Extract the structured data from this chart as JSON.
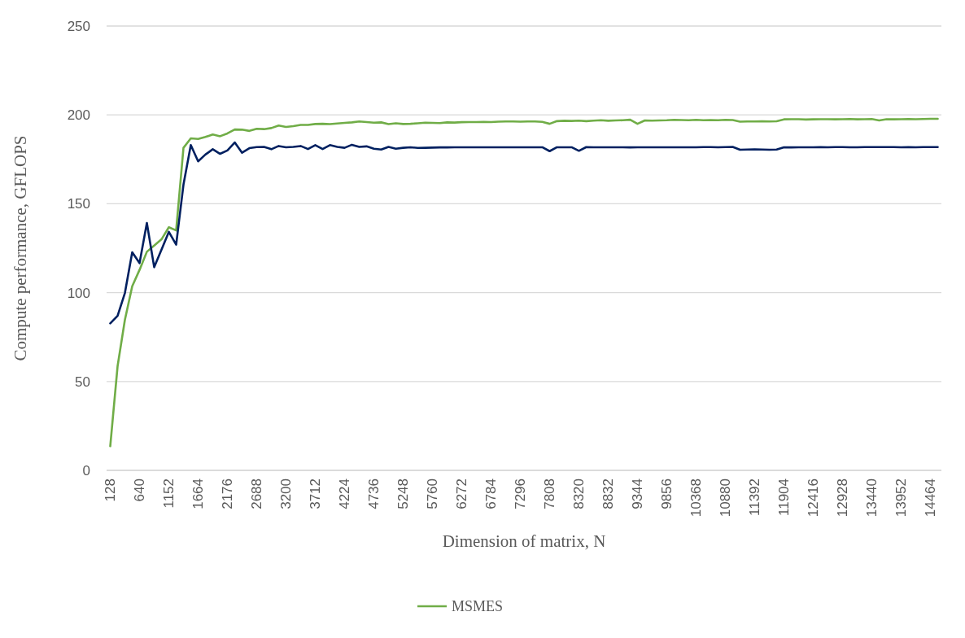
{
  "chart_data": {
    "type": "line",
    "xlabel": "Dimension of matrix, N",
    "ylabel": "Compute performance,  GFLOPS",
    "categories": [
      "128",
      null,
      null,
      null,
      "640",
      null,
      null,
      null,
      "1152",
      null,
      null,
      null,
      "1664",
      null,
      null,
      null,
      "2176",
      null,
      null,
      null,
      "2688",
      null,
      null,
      null,
      "3200",
      null,
      null,
      null,
      "3712",
      null,
      null,
      null,
      "4224",
      null,
      null,
      null,
      "4736",
      null,
      null,
      null,
      "5248",
      null,
      null,
      null,
      "5760",
      null,
      null,
      null,
      "6272",
      null,
      null,
      null,
      "6784",
      null,
      null,
      null,
      "7296",
      null,
      null,
      null,
      "7808",
      null,
      null,
      null,
      "8320",
      null,
      null,
      null,
      "8832",
      null,
      null,
      null,
      "9344",
      null,
      null,
      null,
      "9856",
      null,
      null,
      null,
      "10368",
      null,
      null,
      null,
      "10880",
      null,
      null,
      null,
      "11392",
      null,
      null,
      null,
      "11904",
      null,
      null,
      null,
      "12416",
      null,
      null,
      null,
      "12928",
      null,
      null,
      null,
      "13440",
      null,
      null,
      null,
      "13952",
      null,
      null,
      null,
      "14464",
      null
    ],
    "series": [
      {
        "name": "MSMES",
        "color": "#70ad47",
        "values": [
          13.6,
          58.6,
          84.7,
          103.6,
          112.8,
          123,
          126.5,
          130,
          136.8,
          135,
          181.5,
          186.8,
          186.5,
          187.6,
          189,
          188,
          189.6,
          191.8,
          191.7,
          191,
          192.2,
          192,
          192.6,
          194,
          193.2,
          193.7,
          194.4,
          194.4,
          194.9,
          195,
          194.8,
          195.2,
          195.5,
          195.8,
          196.3,
          196,
          195.6,
          195.8,
          194.8,
          195.3,
          194.9,
          195,
          195.3,
          195.6,
          195.5,
          195.4,
          195.8,
          195.7,
          195.9,
          196,
          196,
          196.1,
          196,
          196.2,
          196.3,
          196.3,
          196.2,
          196.3,
          196.3,
          196.1,
          195,
          196.5,
          196.7,
          196.6,
          196.8,
          196.5,
          196.8,
          197,
          196.7,
          196.9,
          197,
          197.3,
          195,
          196.9,
          196.8,
          196.9,
          197,
          197.2,
          197.1,
          197,
          197.2,
          197,
          197.1,
          197,
          197.2,
          197.1,
          196.2,
          196.3,
          196.3,
          196.4,
          196.3,
          196.4,
          197.5,
          197.6,
          197.6,
          197.4,
          197.5,
          197.6,
          197.6,
          197.5,
          197.6,
          197.7,
          197.5,
          197.6,
          197.7,
          196.9,
          197.6,
          197.5,
          197.6,
          197.7,
          197.6,
          197.7,
          197.8,
          197.8
        ]
      },
      {
        "color": "#002060",
        "values": [
          82.7,
          86.9,
          99.8,
          122.7,
          116.6,
          139.2,
          114.3,
          124.2,
          134.2,
          127,
          160.8,
          183,
          173.9,
          177.7,
          180.7,
          178.1,
          180,
          184.5,
          178.7,
          181.3,
          181.9,
          182,
          180.7,
          182.5,
          181.8,
          182,
          182.5,
          180.8,
          183,
          180.8,
          183,
          182,
          181.5,
          183.2,
          182,
          182.3,
          181,
          180.5,
          182,
          181,
          181.5,
          181.8,
          181.4,
          181.5,
          181.6,
          181.7,
          181.7,
          181.8,
          181.8,
          181.8,
          181.8,
          181.8,
          181.8,
          181.8,
          181.8,
          181.8,
          181.8,
          181.8,
          181.8,
          181.8,
          179.6,
          181.8,
          181.8,
          181.8,
          179.8,
          181.9,
          181.8,
          181.8,
          181.8,
          181.8,
          181.8,
          181.7,
          181.8,
          181.8,
          181.8,
          181.8,
          181.8,
          181.8,
          181.8,
          181.8,
          181.8,
          181.9,
          181.9,
          181.8,
          181.9,
          182,
          180.4,
          180.5,
          180.6,
          180.5,
          180.4,
          180.5,
          181.8,
          181.7,
          181.8,
          181.8,
          181.8,
          181.9,
          181.8,
          181.9,
          181.9,
          181.8,
          181.8,
          181.9,
          181.9,
          181.9,
          181.9,
          181.9,
          181.8,
          181.9,
          181.8,
          181.9,
          181.9,
          181.9
        ]
      }
    ],
    "ylim": [
      0,
      250
    ],
    "yticks": [
      0,
      50,
      100,
      150,
      200,
      250
    ],
    "grid": "y",
    "legend": "bottom",
    "marker": "none",
    "line_style": "solid"
  }
}
